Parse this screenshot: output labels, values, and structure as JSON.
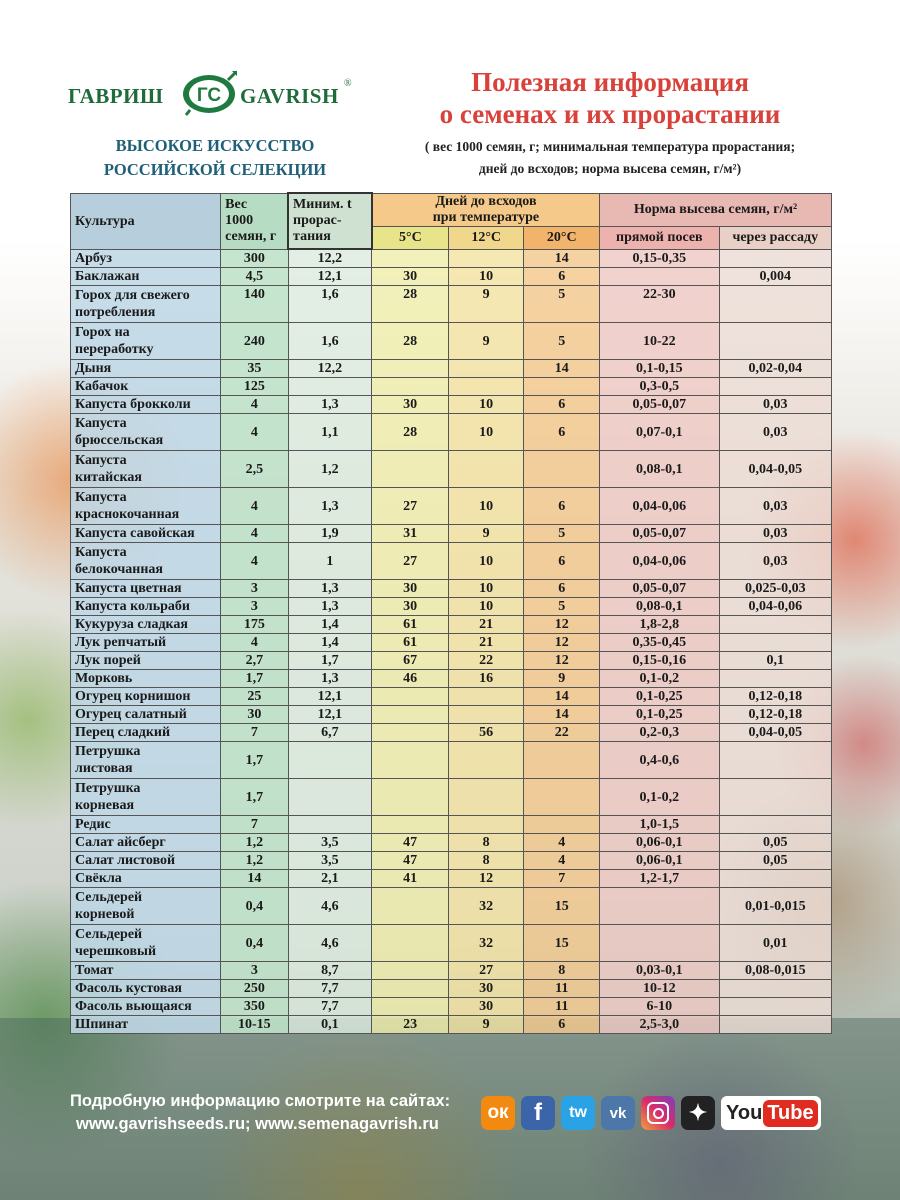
{
  "brand": {
    "name_ru": "ГАВРИШ",
    "name_en": "GAVRISH",
    "mark_text": "ГС",
    "registered": "®",
    "slogan_line1": "ВЫСОКОЕ ИСКУССТВО",
    "slogan_line2": "РОССИЙСКОЙ  СЕЛЕКЦИИ"
  },
  "title_line1": "Полезная информация",
  "title_line2": "о семенах и их прорастании",
  "subtitle_line1": "( вес 1000 семян, г; минимальная температура прорастания;",
  "subtitle_line2": "дней до всходов; норма высева семян, г/м²)",
  "headers": {
    "culture": "Культура",
    "weight_1": "Вес",
    "weight_2": "1000",
    "weight_3": "семян, г",
    "min_t_1": "Миним. t",
    "min_t_2": "прорас-",
    "min_t_3": "тания",
    "days_1": "Дней до всходов",
    "days_2": "при температуре",
    "t5": "5°C",
    "t12": "12°C",
    "t20": "20°C",
    "norm": "Норма высева семян, г/м²",
    "direct": "прямой посев",
    "seedling": "через рассаду"
  },
  "rows": [
    {
      "name": [
        "Арбуз"
      ],
      "w": "300",
      "t": "12,2",
      "d5": "",
      "d12": "",
      "d20": "14",
      "direct": "0,15-0,35",
      "seed": ""
    },
    {
      "name": [
        "Баклажан"
      ],
      "w": "4,5",
      "t": "12,1",
      "d5": "30",
      "d12": "10",
      "d20": "6",
      "direct": "",
      "seed": "0,004"
    },
    {
      "name": [
        "Горох для свежего",
        "потребления"
      ],
      "w": "140",
      "t": "1,6",
      "d5": "28",
      "d12": "9",
      "d20": "5",
      "direct": "22-30",
      "seed": "",
      "top": true
    },
    {
      "name": [
        "Горох на",
        "переработку"
      ],
      "w": "240",
      "t": "1,6",
      "d5": "28",
      "d12": "9",
      "d20": "5",
      "direct": "10-22",
      "seed": ""
    },
    {
      "name": [
        "Дыня"
      ],
      "w": "35",
      "t": "12,2",
      "d5": "",
      "d12": "",
      "d20": "14",
      "direct": "0,1-0,15",
      "seed": "0,02-0,04"
    },
    {
      "name": [
        "Кабачок"
      ],
      "w": "125",
      "t": "",
      "d5": "",
      "d12": "",
      "d20": "",
      "direct": "0,3-0,5",
      "seed": ""
    },
    {
      "name": [
        "Капуста брокколи"
      ],
      "w": "4",
      "t": "1,3",
      "d5": "30",
      "d12": "10",
      "d20": "6",
      "direct": "0,05-0,07",
      "seed": "0,03"
    },
    {
      "name": [
        "Капуста",
        "брюссельская"
      ],
      "w": "4",
      "t": "1,1",
      "d5": "28",
      "d12": "10",
      "d20": "6",
      "direct": "0,07-0,1",
      "seed": "0,03"
    },
    {
      "name": [
        "Капуста",
        "китайская"
      ],
      "w": "2,5",
      "t": "1,2",
      "d5": "",
      "d12": "",
      "d20": "",
      "direct": "0,08-0,1",
      "seed": "0,04-0,05"
    },
    {
      "name": [
        "Капуста",
        "краснокочанная"
      ],
      "w": "4",
      "t": "1,3",
      "d5": "27",
      "d12": "10",
      "d20": "6",
      "direct": "0,04-0,06",
      "seed": "0,03"
    },
    {
      "name": [
        "Капуста савойская"
      ],
      "w": "4",
      "t": "1,9",
      "d5": "31",
      "d12": "9",
      "d20": "5",
      "direct": "0,05-0,07",
      "seed": "0,03"
    },
    {
      "name": [
        "Капуста",
        "белокочанная"
      ],
      "w": "4",
      "t": "1",
      "d5": "27",
      "d12": "10",
      "d20": "6",
      "direct": "0,04-0,06",
      "seed": "0,03"
    },
    {
      "name": [
        "Капуста цветная"
      ],
      "w": "3",
      "t": "1,3",
      "d5": "30",
      "d12": "10",
      "d20": "6",
      "direct": "0,05-0,07",
      "seed": "0,025-0,03"
    },
    {
      "name": [
        "Капуста кольраби"
      ],
      "w": "3",
      "t": "1,3",
      "d5": "30",
      "d12": "10",
      "d20": "5",
      "direct": "0,08-0,1",
      "seed": "0,04-0,06"
    },
    {
      "name": [
        "Кукуруза сладкая"
      ],
      "w": "175",
      "t": "1,4",
      "d5": "61",
      "d12": "21",
      "d20": "12",
      "direct": "1,8-2,8",
      "seed": ""
    },
    {
      "name": [
        "Лук репчатый"
      ],
      "w": "4",
      "t": "1,4",
      "d5": "61",
      "d12": "21",
      "d20": "12",
      "direct": "0,35-0,45",
      "seed": ""
    },
    {
      "name": [
        "Лук порей"
      ],
      "w": "2,7",
      "t": "1,7",
      "d5": "67",
      "d12": "22",
      "d20": "12",
      "direct": "0,15-0,16",
      "seed": "0,1"
    },
    {
      "name": [
        "Морковь"
      ],
      "w": "1,7",
      "t": "1,3",
      "d5": "46",
      "d12": "16",
      "d20": "9",
      "direct": "0,1-0,2",
      "seed": ""
    },
    {
      "name": [
        "Огурец корнишон"
      ],
      "w": "25",
      "t": "12,1",
      "d5": "",
      "d12": "",
      "d20": "14",
      "direct": "0,1-0,25",
      "seed": "0,12-0,18"
    },
    {
      "name": [
        "Огурец салатный"
      ],
      "w": "30",
      "t": "12,1",
      "d5": "",
      "d12": "",
      "d20": "14",
      "direct": "0,1-0,25",
      "seed": "0,12-0,18"
    },
    {
      "name": [
        "Перец сладкий"
      ],
      "w": "7",
      "t": "6,7",
      "d5": "",
      "d12": "56",
      "d20": "22",
      "direct": "0,2-0,3",
      "seed": "0,04-0,05"
    },
    {
      "name": [
        "Петрушка",
        "листовая"
      ],
      "w": "1,7",
      "t": "",
      "d5": "",
      "d12": "",
      "d20": "",
      "direct": "0,4-0,6",
      "seed": ""
    },
    {
      "name": [
        "Петрушка",
        "корневая"
      ],
      "w": "1,7",
      "t": "",
      "d5": "",
      "d12": "",
      "d20": "",
      "direct": "0,1-0,2",
      "seed": ""
    },
    {
      "name": [
        "Редис"
      ],
      "w": "7",
      "t": "",
      "d5": "",
      "d12": "",
      "d20": "",
      "direct": "1,0-1,5",
      "seed": ""
    },
    {
      "name": [
        "Салат айсберг"
      ],
      "w": "1,2",
      "t": "3,5",
      "d5": "47",
      "d12": "8",
      "d20": "4",
      "direct": "0,06-0,1",
      "seed": "0,05"
    },
    {
      "name": [
        "Салат листовой"
      ],
      "w": "1,2",
      "t": "3,5",
      "d5": "47",
      "d12": "8",
      "d20": "4",
      "direct": "0,06-0,1",
      "seed": "0,05"
    },
    {
      "name": [
        "Свёкла"
      ],
      "w": "14",
      "t": "2,1",
      "d5": "41",
      "d12": "12",
      "d20": "7",
      "direct": "1,2-1,7",
      "seed": ""
    },
    {
      "name": [
        "Сельдерей",
        "корневой"
      ],
      "w": "0,4",
      "t": "4,6",
      "d5": "",
      "d12": "32",
      "d20": "15",
      "direct": "",
      "seed": "0,01-0,015"
    },
    {
      "name": [
        "Сельдерей",
        "черешковый"
      ],
      "w": "0,4",
      "t": "4,6",
      "d5": "",
      "d12": "32",
      "d20": "15",
      "direct": "",
      "seed": "0,01"
    },
    {
      "name": [
        "Томат"
      ],
      "w": "3",
      "t": "8,7",
      "d5": "",
      "d12": "27",
      "d20": "8",
      "direct": "0,03-0,1",
      "seed": "0,08-0,015"
    },
    {
      "name": [
        "Фасоль кустовая"
      ],
      "w": "250",
      "t": "7,7",
      "d5": "",
      "d12": "30",
      "d20": "11",
      "direct": "10-12",
      "seed": ""
    },
    {
      "name": [
        "Фасоль вьющаяся"
      ],
      "w": "350",
      "t": "7,7",
      "d5": "",
      "d12": "30",
      "d20": "11",
      "direct": "6-10",
      "seed": ""
    },
    {
      "name": [
        "Шпинат"
      ],
      "w": "10-15",
      "t": "0,1",
      "d5": "23",
      "d12": "9",
      "d20": "6",
      "direct": "2,5-3,0",
      "seed": ""
    }
  ],
  "footer": {
    "line1": "Подробную информацию смотрите на сайтах:",
    "line2": "www.gavrishseeds.ru;  www.semenagavrish.ru"
  },
  "social": [
    {
      "name": "odnoklassniki-icon",
      "glyph": "ок",
      "cls": "ok"
    },
    {
      "name": "facebook-icon",
      "glyph": "f",
      "cls": "fb"
    },
    {
      "name": "twitter-icon",
      "glyph": "tw",
      "cls": "tw"
    },
    {
      "name": "vk-icon",
      "glyph": "vk",
      "cls": "vk"
    },
    {
      "name": "instagram-icon",
      "glyph": "",
      "cls": "ig"
    },
    {
      "name": "zen-icon",
      "glyph": "✦",
      "cls": "zen"
    }
  ],
  "youtube_you": "You",
  "youtube_tube": "Tube"
}
